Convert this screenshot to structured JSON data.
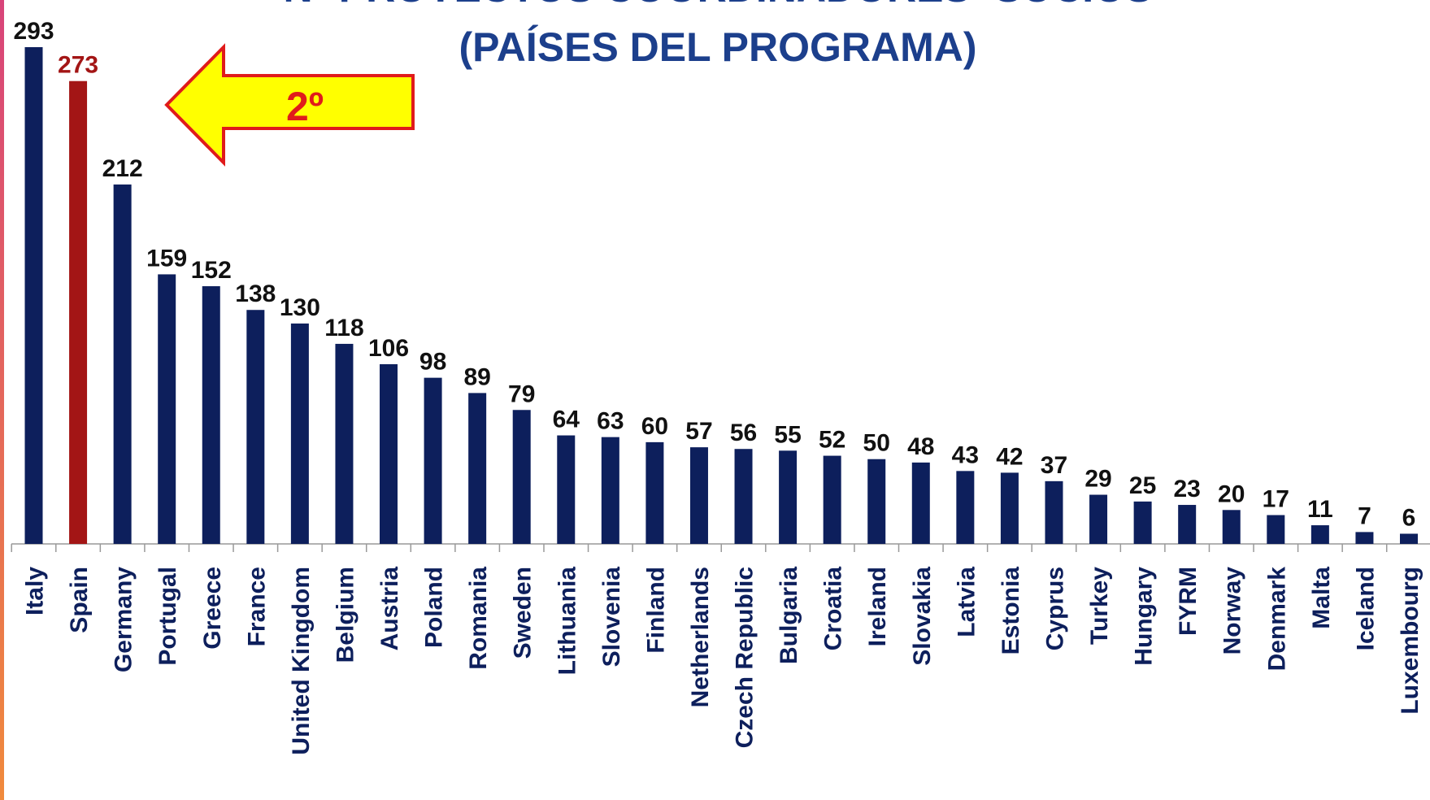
{
  "chart_data": {
    "type": "bar",
    "title": "Nº PROYECTOS COORDINADORES+SOCIOS",
    "subtitle": "(PAÍSES DEL PROGRAMA)",
    "annotation": "2º",
    "categories": [
      "Italy",
      "Spain",
      "Germany",
      "Portugal",
      "Greece",
      "France",
      "United Kingdom",
      "Belgium",
      "Austria",
      "Poland",
      "Romania",
      "Sweden",
      "Lithuania",
      "Slovenia",
      "Finland",
      "Netherlands",
      "Czech Republic",
      "Bulgaria",
      "Croatia",
      "Ireland",
      "Slovakia",
      "Latvia",
      "Estonia",
      "Cyprus",
      "Turkey",
      "Hungary",
      "FYRM",
      "Norway",
      "Denmark",
      "Malta",
      "Iceland",
      "Luxembourg"
    ],
    "values": [
      293,
      273,
      212,
      159,
      152,
      138,
      130,
      118,
      106,
      98,
      89,
      79,
      64,
      63,
      60,
      57,
      56,
      55,
      52,
      50,
      48,
      43,
      42,
      37,
      29,
      25,
      23,
      20,
      17,
      11,
      7,
      6
    ],
    "colors": [
      "#0d1f5c",
      "#a31515",
      "#0d1f5c",
      "#0d1f5c",
      "#0d1f5c",
      "#0d1f5c",
      "#0d1f5c",
      "#0d1f5c",
      "#0d1f5c",
      "#0d1f5c",
      "#0d1f5c",
      "#0d1f5c",
      "#0d1f5c",
      "#0d1f5c",
      "#0d1f5c",
      "#0d1f5c",
      "#0d1f5c",
      "#0d1f5c",
      "#0d1f5c",
      "#0d1f5c",
      "#0d1f5c",
      "#0d1f5c",
      "#0d1f5c",
      "#0d1f5c",
      "#0d1f5c",
      "#0d1f5c",
      "#0d1f5c",
      "#0d1f5c",
      "#0d1f5c",
      "#0d1f5c",
      "#0d1f5c",
      "#0d1f5c"
    ],
    "grid": false
  }
}
